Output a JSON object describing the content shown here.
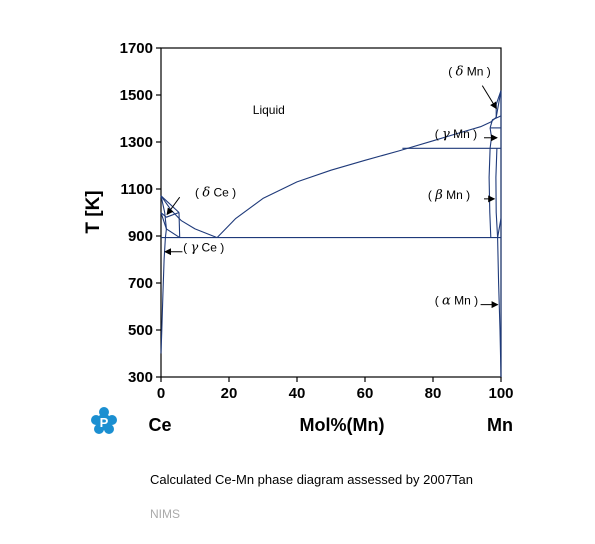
{
  "chart_data": {
    "type": "phase-diagram",
    "ylabel": "T [K]",
    "xlabel": "Mol%(Mn)",
    "left_label": "Ce",
    "right_label": "Mn",
    "xlim": [
      0,
      100
    ],
    "ylim": [
      300,
      1700
    ],
    "xticks": [
      0,
      20,
      40,
      60,
      80,
      100
    ],
    "yticks": [
      300,
      500,
      700,
      900,
      1100,
      1300,
      1500,
      1700
    ],
    "line_color": "#1f3a7a",
    "grid": false,
    "phase_labels": [
      {
        "id": "liquid",
        "text": "Liquid",
        "greek": "",
        "x": 27,
        "y": 1420
      },
      {
        "id": "delta-ce",
        "text": ")",
        "prefix": "(",
        "greek": "δ",
        "suffix": "Ce",
        "x": 10,
        "y": 1068
      },
      {
        "id": "gamma-ce",
        "text": ")",
        "prefix": "(",
        "greek": "γ",
        "suffix": "Ce",
        "x": 6.5,
        "y": 835
      },
      {
        "id": "delta-mn",
        "text": ")",
        "prefix": "(",
        "greek": "δ",
        "suffix": "Mn",
        "x": 84.5,
        "y": 1582
      },
      {
        "id": "gamma-mn",
        "text": ")",
        "prefix": "(",
        "greek": "γ",
        "suffix": "Mn",
        "x": 80.5,
        "y": 1318
      },
      {
        "id": "beta-mn",
        "text": ")",
        "prefix": "(",
        "greek": "β",
        "suffix": "Mn",
        "x": 78.5,
        "y": 1058
      },
      {
        "id": "alpha-mn",
        "text": ")",
        "prefix": "(",
        "greek": "α",
        "suffix": "Mn",
        "x": 80.5,
        "y": 608
      }
    ],
    "arrows": [
      {
        "from": [
          5.5,
          1065
        ],
        "to": [
          1.8,
          992
        ]
      },
      {
        "from": [
          6.3,
          833
        ],
        "to": [
          1.2,
          833
        ]
      },
      {
        "from": [
          94.5,
          1540
        ],
        "to": [
          98.6,
          1443
        ]
      },
      {
        "from": [
          95.0,
          1318
        ],
        "to": [
          98.8,
          1318
        ]
      },
      {
        "from": [
          95.0,
          1058
        ],
        "to": [
          98.0,
          1058
        ]
      },
      {
        "from": [
          94.0,
          608
        ],
        "to": [
          99.0,
          608
        ]
      }
    ],
    "boundaries": [
      {
        "name": "liquidus-ce",
        "points": [
          [
            0,
            1071
          ],
          [
            3,
            1010
          ],
          [
            6,
            965
          ],
          [
            10,
            930
          ],
          [
            16.5,
            893
          ]
        ]
      },
      {
        "name": "liquidus-mn",
        "points": [
          [
            16.5,
            893
          ],
          [
            22,
            975
          ],
          [
            30,
            1060
          ],
          [
            40,
            1130
          ],
          [
            50,
            1180
          ],
          [
            60,
            1222
          ],
          [
            70,
            1262
          ],
          [
            80,
            1305
          ],
          [
            88,
            1340
          ],
          [
            94,
            1365
          ],
          [
            97,
            1385
          ],
          [
            98.6,
            1405
          ],
          [
            100,
            1519
          ]
        ]
      },
      {
        "name": "eutectic-ce",
        "points": [
          [
            0,
            893
          ],
          [
            100,
            893
          ]
        ]
      },
      {
        "name": "bcc-ce-left-top",
        "points": [
          [
            0,
            1071
          ],
          [
            5.3,
            1000
          ]
        ]
      },
      {
        "name": "bcc-ce-right",
        "points": [
          [
            5.3,
            1000
          ],
          [
            5.5,
            893
          ]
        ]
      },
      {
        "name": "bcc-ce-left-solvus",
        "points": [
          [
            0,
            1071
          ],
          [
            1.1,
            1000
          ],
          [
            1.6,
            930
          ]
        ]
      },
      {
        "name": "fcc-ce-upper",
        "points": [
          [
            0,
            999
          ],
          [
            1.6,
            980
          ],
          [
            5.3,
            1000
          ]
        ]
      },
      {
        "name": "fcc-ce-lower",
        "points": [
          [
            0,
            999
          ],
          [
            1.6,
            930
          ],
          [
            5.5,
            893
          ]
        ]
      },
      {
        "name": "fcc-ce-solvus",
        "points": [
          [
            1.6,
            930
          ],
          [
            1.3,
            893
          ],
          [
            0.9,
            800
          ],
          [
            0.55,
            650
          ],
          [
            0.25,
            500
          ],
          [
            0,
            400
          ]
        ]
      },
      {
        "name": "beta-gamma-invariant",
        "points": [
          [
            71,
            1273
          ],
          [
            100,
            1273
          ]
        ]
      },
      {
        "name": "gamma-delta-invariant",
        "points": [
          [
            96.8,
            1360
          ],
          [
            100,
            1360
          ]
        ]
      },
      {
        "name": "delta-gamma-lower",
        "points": [
          [
            96.8,
            1360
          ],
          [
            97.5,
            1395
          ],
          [
            100,
            1411
          ]
        ]
      },
      {
        "name": "gamma-region-left",
        "points": [
          [
            96.8,
            1273
          ],
          [
            97.2,
            1320
          ],
          [
            96.8,
            1360
          ]
        ]
      },
      {
        "name": "delta-mn-left",
        "points": [
          [
            98.6,
            1405
          ],
          [
            98.6,
            1460
          ],
          [
            100,
            1519
          ]
        ]
      },
      {
        "name": "beta-mn-left",
        "points": [
          [
            96.8,
            1273
          ],
          [
            96.5,
            1150
          ],
          [
            96.7,
            1000
          ],
          [
            97.0,
            893
          ]
        ]
      },
      {
        "name": "beta-mn-right",
        "points": [
          [
            98.8,
            1273
          ],
          [
            98.5,
            1150
          ],
          [
            98.6,
            1000
          ],
          [
            99.0,
            893
          ]
        ]
      },
      {
        "name": "beta-alpha",
        "points": [
          [
            99.0,
            893
          ],
          [
            100,
            975
          ]
        ]
      },
      {
        "name": "alpha-mn-solvus",
        "points": [
          [
            99.0,
            893
          ],
          [
            99.3,
            700
          ],
          [
            99.7,
            500
          ],
          [
            100,
            300
          ]
        ]
      },
      {
        "name": "ce-axis-line",
        "points": [
          [
            100,
            300
          ],
          [
            100,
            1519
          ]
        ]
      }
    ]
  },
  "caption": "Calculated Ce-Mn phase diagram assessed by 2007Tan",
  "source": "NIMS",
  "logo": {
    "icon": "nims-p-logo-icon",
    "color": "#1b8fd1"
  }
}
